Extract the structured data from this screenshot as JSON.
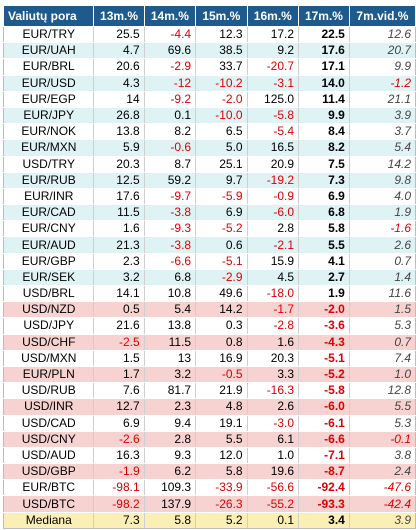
{
  "headers": [
    "Valiutų pora",
    "13m.%",
    "14m.%",
    "15m.%",
    "16m.%",
    "17m.%",
    "7m.vid.%"
  ],
  "rows": [
    {
      "pair": "EUR/TRY",
      "v": [
        "25.5",
        "-4.4",
        "12.3",
        "17.2",
        "22.5",
        "12.6"
      ],
      "type": "pos"
    },
    {
      "pair": "EUR/UAH",
      "v": [
        "4.7",
        "69.6",
        "38.5",
        "9.2",
        "17.6",
        "20.7"
      ],
      "type": "pos"
    },
    {
      "pair": "EUR/BRL",
      "v": [
        "20.6",
        "-2.9",
        "33.7",
        "-20.7",
        "17.1",
        "9.9"
      ],
      "type": "pos"
    },
    {
      "pair": "EUR/USD",
      "v": [
        "4.3",
        "-12",
        "-10.2",
        "-3.1",
        "14.0",
        "-1.2"
      ],
      "type": "pos"
    },
    {
      "pair": "EUR/EGP",
      "v": [
        "14",
        "-9.2",
        "-2.0",
        "125.0",
        "11.4",
        "21.1"
      ],
      "type": "pos"
    },
    {
      "pair": "EUR/JPY",
      "v": [
        "26.8",
        "0.1",
        "-10.0",
        "-5.8",
        "9.9",
        "3.9"
      ],
      "type": "pos"
    },
    {
      "pair": "EUR/NOK",
      "v": [
        "13.8",
        "8.2",
        "6.5",
        "-5.4",
        "8.4",
        "3.7"
      ],
      "type": "pos"
    },
    {
      "pair": "EUR/MXN",
      "v": [
        "5.9",
        "-0.6",
        "5.0",
        "16.5",
        "8.2",
        "5.4"
      ],
      "type": "pos"
    },
    {
      "pair": "USD/TRY",
      "v": [
        "20.3",
        "8.7",
        "25.1",
        "20.9",
        "7.5",
        "14.2"
      ],
      "type": "pos"
    },
    {
      "pair": "EUR/RUB",
      "v": [
        "12.5",
        "59.2",
        "9.7",
        "-19.2",
        "7.3",
        "9.8"
      ],
      "type": "pos"
    },
    {
      "pair": "EUR/INR",
      "v": [
        "17.6",
        "-9.7",
        "-5.9",
        "-0.9",
        "6.9",
        "4.0"
      ],
      "type": "pos"
    },
    {
      "pair": "EUR/CAD",
      "v": [
        "11.5",
        "-3.8",
        "6.9",
        "-6.0",
        "6.8",
        "1.9"
      ],
      "type": "pos"
    },
    {
      "pair": "EUR/CNY",
      "v": [
        "1.6",
        "-9.3",
        "-5.2",
        "2.8",
        "5.8",
        "-1.6"
      ],
      "type": "pos"
    },
    {
      "pair": "EUR/AUD",
      "v": [
        "21.3",
        "-3.8",
        "0.6",
        "-2.1",
        "5.5",
        "2.6"
      ],
      "type": "pos"
    },
    {
      "pair": "EUR/GBP",
      "v": [
        "2.3",
        "-6.6",
        "-5.1",
        "15.9",
        "4.1",
        "0.7"
      ],
      "type": "pos"
    },
    {
      "pair": "EUR/SEK",
      "v": [
        "3.2",
        "6.8",
        "-2.9",
        "4.5",
        "2.7",
        "1.4"
      ],
      "type": "pos"
    },
    {
      "pair": "USD/BRL",
      "v": [
        "14.1",
        "10.8",
        "49.6",
        "-18.0",
        "1.9",
        "11.6"
      ],
      "type": "pos"
    },
    {
      "pair": "USD/NZD",
      "v": [
        "0.5",
        "5.4",
        "14.2",
        "-1.7",
        "-2.0",
        "1.5"
      ],
      "type": "negrow"
    },
    {
      "pair": "USD/JPY",
      "v": [
        "21.6",
        "13.8",
        "0.3",
        "-2.8",
        "-3.6",
        "5.3"
      ],
      "type": "negrow"
    },
    {
      "pair": "USD/CHF",
      "v": [
        "-2.5",
        "11.5",
        "0.8",
        "1.6",
        "-4.3",
        "0.7"
      ],
      "type": "negrow"
    },
    {
      "pair": "USD/MXN",
      "v": [
        "1.5",
        "13",
        "16.9",
        "20.3",
        "-5.1",
        "7.4"
      ],
      "type": "negrow"
    },
    {
      "pair": "EUR/PLN",
      "v": [
        "1.7",
        "3.2",
        "-0.5",
        "3.3",
        "-5.2",
        "1.0"
      ],
      "type": "negrow"
    },
    {
      "pair": "USD/RUB",
      "v": [
        "7.6",
        "81.7",
        "21.9",
        "-16.3",
        "-5.8",
        "12.8"
      ],
      "type": "negrow"
    },
    {
      "pair": "USD/INR",
      "v": [
        "12.7",
        "2.3",
        "4.8",
        "2.6",
        "-6.0",
        "5.5"
      ],
      "type": "negrow"
    },
    {
      "pair": "USD/CAD",
      "v": [
        "6.9",
        "9.4",
        "19.1",
        "-3.0",
        "-6.1",
        "5.3"
      ],
      "type": "negrow"
    },
    {
      "pair": "USD/CNY",
      "v": [
        "-2.6",
        "2.8",
        "5.5",
        "6.1",
        "-6.6",
        "-0.1"
      ],
      "type": "negrow"
    },
    {
      "pair": "USD/AUD",
      "v": [
        "16.3",
        "9.3",
        "12.0",
        "1.0",
        "-7.1",
        "3.8"
      ],
      "type": "negrow"
    },
    {
      "pair": "USD/GBP",
      "v": [
        "-1.9",
        "6.2",
        "5.8",
        "19.6",
        "-8.7",
        "2.4"
      ],
      "type": "negrow"
    },
    {
      "pair": "EUR/BTC",
      "v": [
        "-98.1",
        "109.3",
        "-33.9",
        "-56.6",
        "-92.4",
        "-47.6"
      ],
      "type": "negrow"
    },
    {
      "pair": "USD/BTC",
      "v": [
        "-98.2",
        "137.9",
        "-26.3",
        "-55.2",
        "-93.3",
        "-42.4"
      ],
      "type": "negrow"
    }
  ],
  "median": {
    "pair": "Mediana",
    "v": [
      "7.3",
      "5.8",
      "5.2",
      "0.1",
      "3.4",
      "3.9"
    ]
  },
  "colors": {
    "header_bg": "#1f5a8c",
    "positive_band": "#dff3f5",
    "negative_band": "#f6d3d1",
    "median_bg": "#fbefb6",
    "negative_text": "#e00000"
  }
}
